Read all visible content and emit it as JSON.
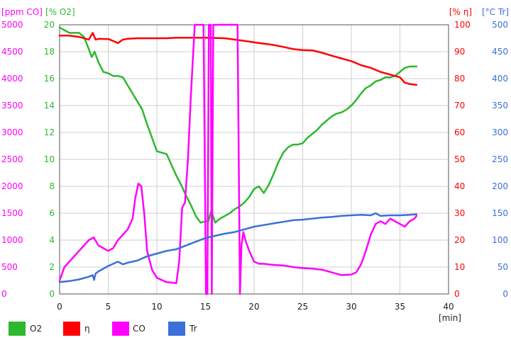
{
  "chart_data": {
    "type": "line",
    "x_unit": "[min]",
    "x_ticks": [
      0,
      5,
      10,
      15,
      20,
      25,
      30,
      35,
      40
    ],
    "xlim": [
      0,
      40
    ],
    "axes": [
      {
        "id": "co",
        "unit": "[ppm CO]",
        "color": "#ff00ff",
        "ylim": [
          0,
          5000
        ],
        "ticks": [
          0,
          500,
          1000,
          1500,
          2000,
          2500,
          3000,
          3500,
          4000,
          4500,
          5000
        ]
      },
      {
        "id": "o2",
        "unit": "[% O2]",
        "color": "#2db82d",
        "ylim": [
          0,
          20
        ],
        "ticks": [
          0,
          2,
          4,
          6,
          8,
          10,
          12,
          14,
          16,
          18,
          20
        ]
      },
      {
        "id": "eta",
        "unit": "[% η]",
        "color": "#ff0000",
        "ylim": [
          0,
          100
        ],
        "ticks": [
          0,
          10,
          20,
          30,
          40,
          50,
          60,
          70,
          80,
          90,
          100
        ]
      },
      {
        "id": "tr",
        "unit": "[°C Tr]",
        "color": "#3b6fd9",
        "ylim": [
          0,
          500
        ],
        "ticks": [
          0,
          50,
          100,
          150,
          200,
          250,
          300,
          350,
          400,
          450,
          500
        ]
      }
    ],
    "series": [
      {
        "name": "O2",
        "axis": "o2",
        "color": "#2db82d",
        "x": [
          0,
          0.5,
          1,
          2,
          2.5,
          3,
          3.3,
          3.6,
          4,
          4.5,
          5,
          5.5,
          6,
          6.5,
          7,
          7.5,
          8,
          8.5,
          9,
          9.5,
          10,
          11,
          11.5,
          12,
          12.5,
          13,
          13.5,
          14,
          14.5,
          15,
          15.3,
          15.6,
          16,
          16.5,
          17,
          17.5,
          18,
          18.5,
          19,
          19.5,
          20,
          20.5,
          21,
          21.5,
          22,
          22.5,
          23,
          23.5,
          24,
          24.5,
          25,
          25.5,
          26,
          26.5,
          27,
          27.5,
          28,
          28.5,
          29,
          29.5,
          30,
          30.5,
          31,
          31.5,
          32,
          32.5,
          33,
          33.5,
          34,
          34.5,
          35,
          35.5,
          36,
          36.5,
          36.7
        ],
        "y": [
          19.8,
          19.6,
          19.4,
          19.4,
          19.1,
          18.2,
          17.6,
          18,
          17.2,
          16.5,
          16.4,
          16.2,
          16.2,
          16.1,
          15.5,
          14.9,
          14.3,
          13.7,
          12.6,
          11.6,
          10.6,
          10.4,
          9.6,
          8.8,
          8.1,
          7.3,
          6.6,
          5.8,
          5.3,
          5.4,
          5.4,
          6.2,
          5.3,
          5.6,
          5.8,
          6.0,
          6.3,
          6.5,
          6.8,
          7.2,
          7.8,
          8.0,
          7.5,
          8.1,
          8.9,
          9.8,
          10.5,
          10.9,
          11.1,
          11.1,
          11.2,
          11.6,
          11.9,
          12.2,
          12.6,
          12.9,
          13.2,
          13.4,
          13.5,
          13.7,
          14.0,
          14.4,
          14.9,
          15.3,
          15.5,
          15.8,
          15.9,
          16.1,
          16.1,
          16.2,
          16.5,
          16.8,
          16.9,
          16.9,
          16.9
        ]
      },
      {
        "name": "η",
        "axis": "eta",
        "color": "#ff0000",
        "x": [
          0,
          1,
          2,
          3,
          3.4,
          3.7,
          4,
          5,
          5.5,
          6,
          6.5,
          7,
          8,
          9,
          10,
          11,
          12,
          13,
          14,
          15,
          16,
          17,
          18,
          19,
          20,
          21,
          22,
          23,
          24,
          25,
          26,
          27,
          28,
          29,
          30,
          31,
          32,
          33,
          34,
          34.5,
          35,
          35.5,
          36,
          36.7
        ],
        "y": [
          96,
          96,
          95.5,
          94.5,
          97,
          94.5,
          94.8,
          94.7,
          94,
          93.2,
          94.5,
          94.8,
          95,
          95,
          95,
          95,
          95.2,
          95.2,
          95.2,
          95.2,
          95.1,
          95,
          94.5,
          94,
          93.5,
          93,
          92.5,
          91.8,
          91,
          90.6,
          90.5,
          89.6,
          88.5,
          87.5,
          86.5,
          85,
          84,
          82.5,
          81.5,
          81,
          80.5,
          78.5,
          78,
          77.7
        ]
      },
      {
        "name": "CO",
        "axis": "co",
        "color": "#ff00ff",
        "x": [
          0,
          0.5,
          1,
          2,
          2.5,
          3,
          3.5,
          4,
          4.5,
          5,
          5.5,
          6,
          6.5,
          7,
          7.5,
          7.8,
          8.1,
          8.4,
          8.7,
          9,
          9.5,
          10,
          11,
          12,
          12.3,
          12.6,
          12.9,
          13.2,
          13.5,
          13.9,
          14.1,
          14.3,
          14.5,
          14.8,
          15.05,
          15.2,
          15.35,
          15.55,
          15.65,
          15.8,
          16,
          17,
          18,
          18.3,
          18.55,
          18.7,
          18.9,
          19.1,
          19.5,
          20,
          20.5,
          21,
          22,
          23,
          24,
          25,
          26,
          27,
          28,
          29,
          30,
          30.5,
          31,
          31.5,
          32,
          32.5,
          33,
          33.5,
          34,
          35,
          35.5,
          36,
          36.5,
          36.7
        ],
        "y": [
          250,
          500,
          600,
          800,
          900,
          1000,
          1050,
          900,
          850,
          800,
          850,
          1000,
          1100,
          1200,
          1400,
          1800,
          2050,
          2000,
          1500,
          800,
          450,
          300,
          220,
          200,
          600,
          1600,
          1700,
          2500,
          3700,
          5000,
          5000,
          5000,
          5000,
          5000,
          0,
          0,
          5000,
          5000,
          0,
          5000,
          5000,
          5000,
          5000,
          5000,
          0,
          900,
          1150,
          1000,
          800,
          600,
          560,
          560,
          540,
          530,
          500,
          480,
          470,
          450,
          400,
          350,
          360,
          400,
          550,
          800,
          1100,
          1300,
          1350,
          1300,
          1400,
          1300,
          1250,
          1350,
          1400,
          1450
        ]
      },
      {
        "name": "Tr",
        "axis": "tr",
        "color": "#3b6fd9",
        "x": [
          0,
          1,
          2,
          3,
          3.4,
          3.55,
          3.7,
          4,
          5,
          6,
          6.5,
          7,
          8,
          9,
          10,
          11,
          12,
          13,
          14,
          15,
          16,
          17,
          18,
          19,
          20,
          21,
          22,
          23,
          24,
          25,
          26,
          27,
          28,
          29,
          30,
          31,
          32,
          32.5,
          33,
          34,
          35,
          36,
          36.7
        ],
        "y": [
          22,
          24,
          27,
          32,
          35,
          26,
          38,
          42,
          52,
          60,
          55,
          58,
          62,
          70,
          75,
          80,
          83,
          90,
          97,
          104,
          108,
          112,
          115,
          120,
          125,
          128,
          131,
          134,
          137,
          138,
          140,
          142,
          143,
          145,
          146,
          147,
          146,
          150,
          145,
          146,
          146,
          147,
          148
        ]
      }
    ]
  },
  "legend": [
    {
      "label": "O2",
      "color": "#2db82d"
    },
    {
      "label": "η",
      "color": "#ff0000"
    },
    {
      "label": "CO",
      "color": "#ff00ff"
    },
    {
      "label": "Tr",
      "color": "#3b6fd9"
    }
  ]
}
